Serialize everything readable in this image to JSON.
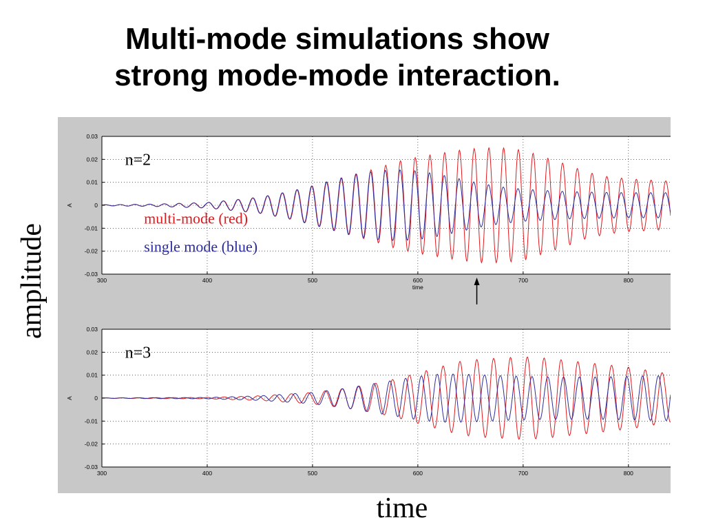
{
  "slide": {
    "title_line1": "Multi-mode simulations show",
    "title_line2": "strong mode-mode interaction.",
    "ylabel": "amplitude",
    "xlabel": "time"
  },
  "colors": {
    "multi_mode": "#e0191e",
    "single_mode": "#2b2b9c",
    "panel_bg": "#c8c8c8",
    "axes_bg": "#ffffff",
    "grid": "#000000"
  },
  "legend": {
    "multi_label": "multi-mode (red)",
    "single_label": "single mode (blue)"
  },
  "annotation": {
    "type": "arrow",
    "x": 656,
    "points_to": "top-axis"
  },
  "chart_data": [
    {
      "type": "line",
      "panel_label": "n=2",
      "xlabel": "time",
      "ylabel": "A",
      "xlim": [
        300,
        840
      ],
      "ylim": [
        -0.03,
        0.03
      ],
      "xticks": [
        300,
        400,
        500,
        600,
        700,
        800
      ],
      "yticks": [
        0.03,
        0.02,
        0.01,
        0,
        -0.01,
        -0.02,
        -0.03
      ],
      "xtick_labels": [
        "300",
        "400",
        "500",
        "600",
        "700",
        "800"
      ],
      "ytick_labels": [
        "0.03",
        "0.02",
        "0.01",
        "0",
        "-0.01",
        "-0.02",
        "-0.03"
      ],
      "grid": true,
      "series": [
        {
          "name": "multi-mode (red)",
          "color": "#e0191e",
          "x": [
            300,
            350,
            400,
            450,
            480,
            500,
            520,
            540,
            560,
            580,
            600,
            620,
            640,
            660,
            680,
            700,
            720,
            740,
            760,
            780,
            800,
            820,
            840
          ],
          "envelope": [
            0.0002,
            0.0005,
            0.0012,
            0.0035,
            0.0062,
            0.0085,
            0.011,
            0.0135,
            0.016,
            0.019,
            0.021,
            0.0225,
            0.024,
            0.025,
            0.025,
            0.024,
            0.021,
            0.018,
            0.0145,
            0.0125,
            0.0115,
            0.011,
            0.0105
          ],
          "period": 14
        },
        {
          "name": "single mode (blue)",
          "color": "#2b2b9c",
          "x": [
            300,
            350,
            400,
            450,
            480,
            500,
            520,
            540,
            560,
            580,
            600,
            620,
            640,
            660,
            680,
            700,
            720,
            740,
            760,
            780,
            800,
            820,
            840
          ],
          "envelope": [
            0.0002,
            0.0005,
            0.0012,
            0.0035,
            0.0062,
            0.0085,
            0.011,
            0.0135,
            0.015,
            0.0155,
            0.015,
            0.0135,
            0.0115,
            0.0095,
            0.008,
            0.007,
            0.0065,
            0.006,
            0.0058,
            0.0056,
            0.0055,
            0.0055,
            0.0055
          ],
          "period": 14
        }
      ]
    },
    {
      "type": "line",
      "panel_label": "n=3",
      "xlabel": "time",
      "ylabel": "A",
      "xlim": [
        300,
        840
      ],
      "ylim": [
        -0.03,
        0.03
      ],
      "xticks": [
        300,
        400,
        500,
        600,
        700,
        800
      ],
      "yticks": [
        0.03,
        0.02,
        0.01,
        0,
        -0.01,
        -0.02,
        -0.03
      ],
      "xtick_labels": [
        "300",
        "400",
        "500",
        "600",
        "700",
        "800"
      ],
      "ytick_labels": [
        "0.03",
        "0.02",
        "0.01",
        "0",
        "-0.01",
        "-0.02",
        "-0.03"
      ],
      "grid": true,
      "series": [
        {
          "name": "multi-mode (red)",
          "color": "#e0191e",
          "x": [
            300,
            400,
            450,
            500,
            530,
            560,
            580,
            600,
            620,
            640,
            660,
            680,
            700,
            720,
            740,
            760,
            780,
            800,
            820,
            840
          ],
          "envelope": [
            0.0001,
            0.0003,
            0.001,
            0.0025,
            0.0042,
            0.0065,
            0.0085,
            0.011,
            0.0135,
            0.016,
            0.017,
            0.0175,
            0.018,
            0.0175,
            0.0165,
            0.0155,
            0.0145,
            0.0135,
            0.012,
            0.0105
          ],
          "period": 16
        },
        {
          "name": "single mode (blue)",
          "color": "#2b2b9c",
          "x": [
            300,
            400,
            450,
            500,
            530,
            560,
            580,
            600,
            620,
            640,
            660,
            680,
            700,
            720,
            740,
            760,
            780,
            800,
            820,
            840
          ],
          "envelope": [
            0.0001,
            0.0003,
            0.001,
            0.0025,
            0.0042,
            0.0065,
            0.008,
            0.0095,
            0.0105,
            0.0105,
            0.0102,
            0.0098,
            0.0095,
            0.0093,
            0.0092,
            0.0092,
            0.0093,
            0.0095,
            0.0097,
            0.0098
          ],
          "period": 15
        }
      ]
    }
  ]
}
